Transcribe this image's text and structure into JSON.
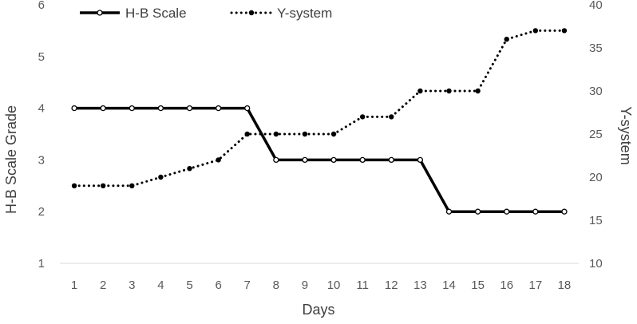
{
  "chart_data": {
    "type": "line",
    "x": [
      1,
      2,
      3,
      4,
      5,
      6,
      7,
      8,
      9,
      10,
      11,
      12,
      13,
      14,
      15,
      16,
      17,
      18
    ],
    "xlabel": "Days",
    "ylabel_left": "H-B Scale Grade",
    "ylabel_right": "Y-system",
    "ylim_left": [
      1,
      6
    ],
    "ylim_right": [
      10,
      40
    ],
    "yticks_left": [
      1,
      2,
      3,
      4,
      5,
      6
    ],
    "yticks_right": [
      10,
      15,
      20,
      25,
      30,
      35,
      40
    ],
    "grid": false,
    "legend_position": "top-left",
    "series": [
      {
        "name": "H-B Scale",
        "axis": "left",
        "style": "solid",
        "marker": "open-circle",
        "color": "#000000",
        "values": [
          4,
          4,
          4,
          4,
          4,
          4,
          4,
          3,
          3,
          3,
          3,
          3,
          3,
          2,
          2,
          2,
          2,
          2
        ]
      },
      {
        "name": "Y-system",
        "axis": "right",
        "style": "dotted",
        "marker": "filled-circle",
        "color": "#000000",
        "values": [
          19,
          19,
          19,
          20,
          21,
          22,
          25,
          25,
          25,
          25,
          27,
          27,
          30,
          30,
          30,
          36,
          37,
          37
        ]
      }
    ]
  }
}
